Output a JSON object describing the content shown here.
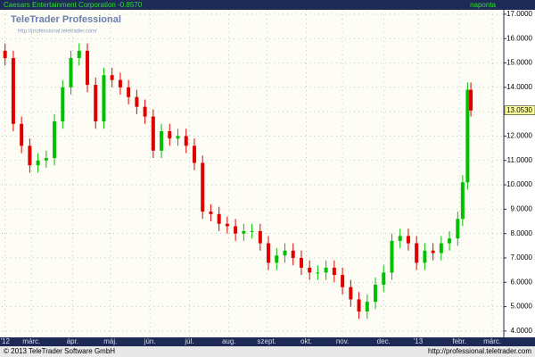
{
  "chart_data": {
    "type": "candlestick",
    "title": "Caesars Entertainment Corporation -0.8570",
    "interval": "naponta",
    "logo": "TeleTrader Professional",
    "logo_url": "http://professional.teletrader.com/",
    "footer_left": "© 2013 TeleTrader Software GmbH",
    "footer_right": "http://professional.teletrader.com",
    "up_color": "#00c000",
    "down_color": "#e00000",
    "grid": true,
    "x": [
      2,
      7,
      12,
      17,
      22,
      27,
      32,
      37,
      42,
      47,
      52,
      57,
      62,
      67,
      72,
      77,
      82,
      87,
      92,
      97,
      102,
      107,
      112,
      117,
      122,
      127,
      132,
      137,
      142,
      147,
      152,
      157,
      162,
      167,
      172,
      177,
      182,
      187,
      192,
      197,
      202,
      207,
      212,
      217,
      222,
      227,
      232,
      237,
      242,
      247,
      252,
      257,
      262,
      267,
      272,
      277,
      280,
      283,
      285
    ],
    "open": [
      15.5,
      15.2,
      12.5,
      11.6,
      10.8,
      11.0,
      11.1,
      12.6,
      14.0,
      15.2,
      15.5,
      14.1,
      12.6,
      14.5,
      14.3,
      14.0,
      13.6,
      13.2,
      12.8,
      11.4,
      12.2,
      11.9,
      12.0,
      11.6,
      10.9,
      8.9,
      8.8,
      8.4,
      8.3,
      8.0,
      8.1,
      8.1,
      7.6,
      6.8,
      7.1,
      7.3,
      7.0,
      6.6,
      6.4,
      6.4,
      6.6,
      6.3,
      5.8,
      5.3,
      4.8,
      5.2,
      5.9,
      6.4,
      7.7,
      7.9,
      7.6,
      6.8,
      7.3,
      7.2,
      7.6,
      7.8,
      8.6,
      10.1,
      13.9
    ],
    "high": [
      15.8,
      15.5,
      12.8,
      11.9,
      11.3,
      11.4,
      12.9,
      14.3,
      15.5,
      15.8,
      15.8,
      14.4,
      14.8,
      14.8,
      14.6,
      14.3,
      13.9,
      13.5,
      13.1,
      12.5,
      12.5,
      12.3,
      12.3,
      11.9,
      11.2,
      9.2,
      9.1,
      8.7,
      8.6,
      8.4,
      8.4,
      8.4,
      7.9,
      7.4,
      7.6,
      7.6,
      7.3,
      6.9,
      6.7,
      6.9,
      6.9,
      6.6,
      6.1,
      5.6,
      5.5,
      6.2,
      6.7,
      8.0,
      8.2,
      8.2,
      7.9,
      7.6,
      7.6,
      7.9,
      8.1,
      8.9,
      10.4,
      14.2,
      14.2
    ],
    "low": [
      14.9,
      12.2,
      11.3,
      10.5,
      10.5,
      10.7,
      10.8,
      12.3,
      13.7,
      14.9,
      13.8,
      12.3,
      12.3,
      14.0,
      13.7,
      13.3,
      12.9,
      12.5,
      11.1,
      11.1,
      11.6,
      11.6,
      11.3,
      10.6,
      8.6,
      8.5,
      8.1,
      8.0,
      7.7,
      7.7,
      7.8,
      7.3,
      6.5,
      6.5,
      6.8,
      6.7,
      6.3,
      6.1,
      6.1,
      6.1,
      6.0,
      5.5,
      5.0,
      4.5,
      4.5,
      4.9,
      5.6,
      6.1,
      7.4,
      7.3,
      6.5,
      6.5,
      6.9,
      6.9,
      7.3,
      7.5,
      8.3,
      9.8,
      12.8
    ],
    "close": [
      15.2,
      12.5,
      11.6,
      10.8,
      11.0,
      11.1,
      12.6,
      14.0,
      15.2,
      15.5,
      14.1,
      12.6,
      14.5,
      14.3,
      14.0,
      13.6,
      13.2,
      12.8,
      11.4,
      12.2,
      11.9,
      12.0,
      11.6,
      10.9,
      8.9,
      8.8,
      8.4,
      8.3,
      8.0,
      8.1,
      8.1,
      7.6,
      6.8,
      7.1,
      7.3,
      7.0,
      6.6,
      6.4,
      6.4,
      6.6,
      6.3,
      5.8,
      5.3,
      4.8,
      5.2,
      5.9,
      6.4,
      7.7,
      7.9,
      7.6,
      6.8,
      7.3,
      7.2,
      7.6,
      7.8,
      8.6,
      10.1,
      13.9,
      13.05
    ],
    "last_price": {
      "value": 13.053,
      "label": "13.0530"
    },
    "xlim": [
      0,
      305
    ],
    "ylim": [
      3.74,
      17.18
    ],
    "xticks": [
      {
        "value": 2,
        "label": "'12"
      },
      {
        "value": 18,
        "label": "márc."
      },
      {
        "value": 43,
        "label": "ápr."
      },
      {
        "value": 66,
        "label": "máj."
      },
      {
        "value": 90,
        "label": "jún."
      },
      {
        "value": 114,
        "label": "júl."
      },
      {
        "value": 138,
        "label": "aug."
      },
      {
        "value": 161,
        "label": "szept."
      },
      {
        "value": 185,
        "label": "okt."
      },
      {
        "value": 207,
        "label": "nov."
      },
      {
        "value": 232,
        "label": "dec."
      },
      {
        "value": 253,
        "label": "'13"
      },
      {
        "value": 278,
        "label": "febr."
      },
      {
        "value": 298,
        "label": "márc."
      }
    ],
    "yticks": [
      {
        "value": 4,
        "label": "4.0000"
      },
      {
        "value": 5,
        "label": "5.0000"
      },
      {
        "value": 6,
        "label": "6.0000"
      },
      {
        "value": 7,
        "label": "7.0000"
      },
      {
        "value": 8,
        "label": "8.0000"
      },
      {
        "value": 9,
        "label": "9.0000"
      },
      {
        "value": 10,
        "label": "10.0000"
      },
      {
        "value": 11,
        "label": "11.0000"
      },
      {
        "value": 12,
        "label": "12.0000"
      },
      {
        "value": 13,
        "label": "13.0000"
      },
      {
        "value": 14,
        "label": "14.0000"
      },
      {
        "value": 15,
        "label": "15.0000"
      },
      {
        "value": 16,
        "label": "16.0000"
      },
      {
        "value": 17,
        "label": "17.0000"
      }
    ]
  }
}
